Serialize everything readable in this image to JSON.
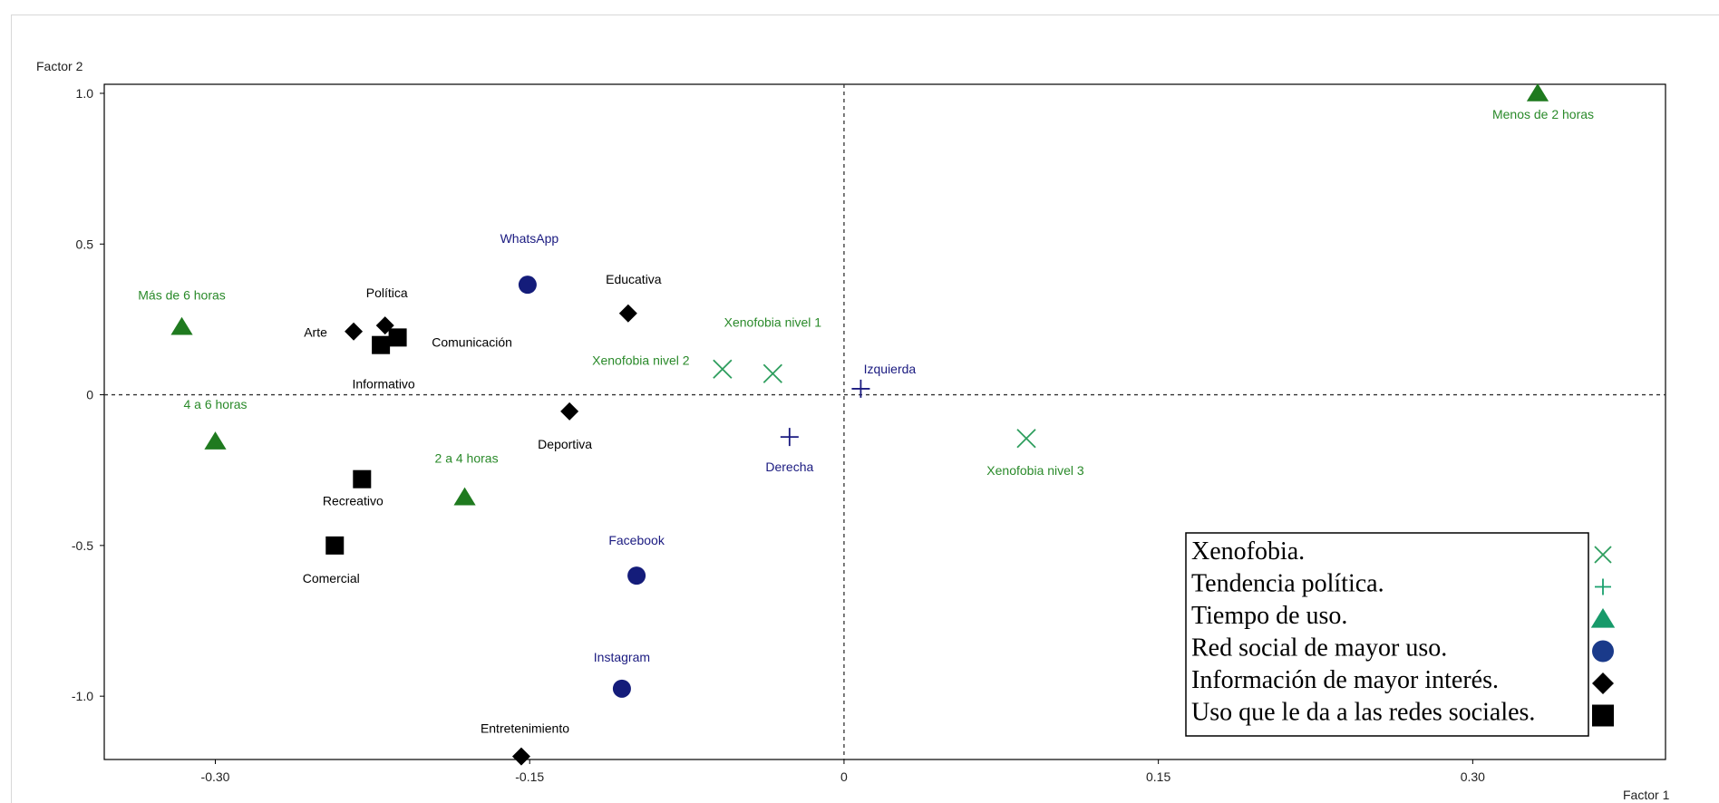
{
  "chart_data": {
    "type": "scatter",
    "title": "",
    "xlabel": "Factor 1",
    "ylabel": "Factor 2",
    "xlim": [
      -0.353,
      0.392
    ],
    "ylim": [
      -1.21,
      1.03
    ],
    "xticks": [
      -0.3,
      -0.15,
      0,
      0.15,
      0.3
    ],
    "xtick_labels": [
      "-0.30",
      "-0.15",
      "0",
      "0.15",
      "0.30"
    ],
    "yticks": [
      1.0,
      0.5,
      0,
      -0.5,
      -1.0
    ],
    "ytick_labels": [
      "1.0",
      "0.5",
      "0",
      "-0.5",
      "-1.0"
    ],
    "reference_lines": {
      "x": 0,
      "y": 0,
      "style": "dotted"
    },
    "grid": false,
    "legend_position": "bottom-right",
    "series": [
      {
        "name": "Xenofobia.",
        "marker": "x",
        "color": "#2e9e5e",
        "label_color": "#2a8a2a",
        "points": [
          {
            "label": "Xenofobia nivel 1",
            "x": -0.034,
            "y": 0.07
          },
          {
            "label": "Xenofobia nivel 2",
            "x": -0.058,
            "y": 0.085
          },
          {
            "label": "Xenofobia nivel 3",
            "x": 0.087,
            "y": -0.145
          }
        ]
      },
      {
        "name": "Tendencia política.",
        "marker": "plus",
        "color": "#1a1a80",
        "legend_color": "#1aa06e",
        "label_color": "#1a1a80",
        "points": [
          {
            "label": "Izquierda",
            "x": 0.008,
            "y": 0.02
          },
          {
            "label": "Derecha",
            "x": -0.026,
            "y": -0.14
          }
        ]
      },
      {
        "name": "Tiempo de uso.",
        "marker": "triangle",
        "color": "#1f7a1f",
        "legend_color": "#179a6a",
        "label_color": "#2a8a2a",
        "points": [
          {
            "label": "Menos de 2 horas",
            "x": 0.331,
            "y": 1.0
          },
          {
            "label": "Más de 6 horas",
            "x": -0.316,
            "y": 0.225
          },
          {
            "label": "4 a 6 horas",
            "x": -0.3,
            "y": -0.155
          },
          {
            "label": "2 a 4 horas",
            "x": -0.181,
            "y": -0.34
          }
        ]
      },
      {
        "name": "Red social de mayor uso.",
        "marker": "circle",
        "color": "#141c7a",
        "legend_color": "#1a3a8a",
        "label_color": "#1a1a80",
        "points": [
          {
            "label": "WhatsApp",
            "x": -0.151,
            "y": 0.365
          },
          {
            "label": "Facebook",
            "x": -0.099,
            "y": -0.6
          },
          {
            "label": "Instagram",
            "x": -0.106,
            "y": -0.975
          }
        ]
      },
      {
        "name": "Información de mayor interés.",
        "marker": "diamond",
        "color": "#000000",
        "label_color": "#000000",
        "points": [
          {
            "label": "Política",
            "x": -0.219,
            "y": 0.23
          },
          {
            "label": "Arte",
            "x": -0.234,
            "y": 0.21
          },
          {
            "label": "Educativa",
            "x": -0.103,
            "y": 0.27
          },
          {
            "label": "Deportiva",
            "x": -0.131,
            "y": -0.055
          },
          {
            "label": "Entretenimiento",
            "x": -0.154,
            "y": -1.2
          }
        ]
      },
      {
        "name": "Uso que le da a las redes sociales.",
        "marker": "square",
        "color": "#000000",
        "label_color": "#000000",
        "points": [
          {
            "label": "Comunicación",
            "x": -0.213,
            "y": 0.19
          },
          {
            "label": "Informativo",
            "x": -0.221,
            "y": 0.165
          },
          {
            "label": "Recreativo",
            "x": -0.23,
            "y": -0.28
          },
          {
            "label": "Comercial",
            "x": -0.243,
            "y": -0.5
          }
        ]
      }
    ]
  }
}
